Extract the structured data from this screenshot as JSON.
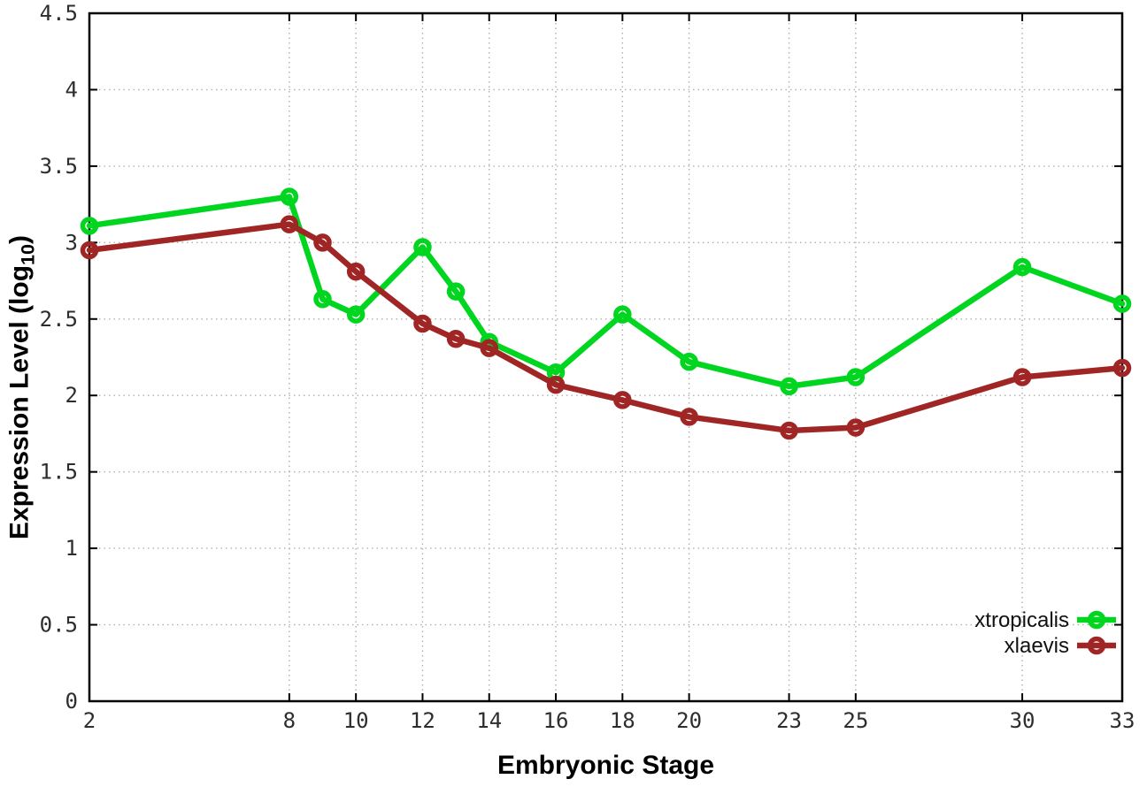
{
  "chart_data": {
    "type": "line",
    "xlabel": "Embryonic Stage",
    "ylabel": "Expression Level (log10)",
    "ylabel_parts": {
      "prefix": "Expression Level (log",
      "sub": "10",
      "suffix": ")"
    },
    "xlim": [
      2,
      33
    ],
    "ylim": [
      0,
      4.5
    ],
    "grid": true,
    "legend_position": "bottom-right",
    "x_tick_values": [
      2,
      8,
      10,
      12,
      14,
      16,
      18,
      20,
      23,
      25,
      30,
      33
    ],
    "x_tick_labels": [
      "2",
      "8",
      "10",
      "12",
      "14",
      "16",
      "18",
      "20",
      "23",
      "25",
      "30",
      "33"
    ],
    "y_tick_values": [
      0,
      0.5,
      1,
      1.5,
      2,
      2.5,
      3,
      3.5,
      4,
      4.5
    ],
    "y_tick_labels": [
      "0",
      "0.5",
      "1",
      "1.5",
      "2",
      "2.5",
      "3",
      "3.5",
      "4",
      "4.5"
    ],
    "x": [
      2,
      8,
      9,
      10,
      12,
      13,
      14,
      16,
      18,
      20,
      23,
      25,
      30,
      33
    ],
    "series": [
      {
        "name": "xtropicalis",
        "color": "#00d520",
        "values": [
          3.11,
          3.3,
          2.63,
          2.53,
          2.97,
          2.68,
          2.35,
          2.15,
          2.53,
          2.22,
          2.06,
          2.12,
          2.84,
          2.6
        ]
      },
      {
        "name": "xlaevis",
        "color": "#a02626",
        "values": [
          2.95,
          3.12,
          3.0,
          2.81,
          2.47,
          2.37,
          2.31,
          2.07,
          1.97,
          1.86,
          1.77,
          1.79,
          2.12,
          2.18
        ]
      }
    ],
    "axis_color": "#000000",
    "grid_color": "#b0b0b0",
    "tick_label_color": "#2d2d2d"
  }
}
